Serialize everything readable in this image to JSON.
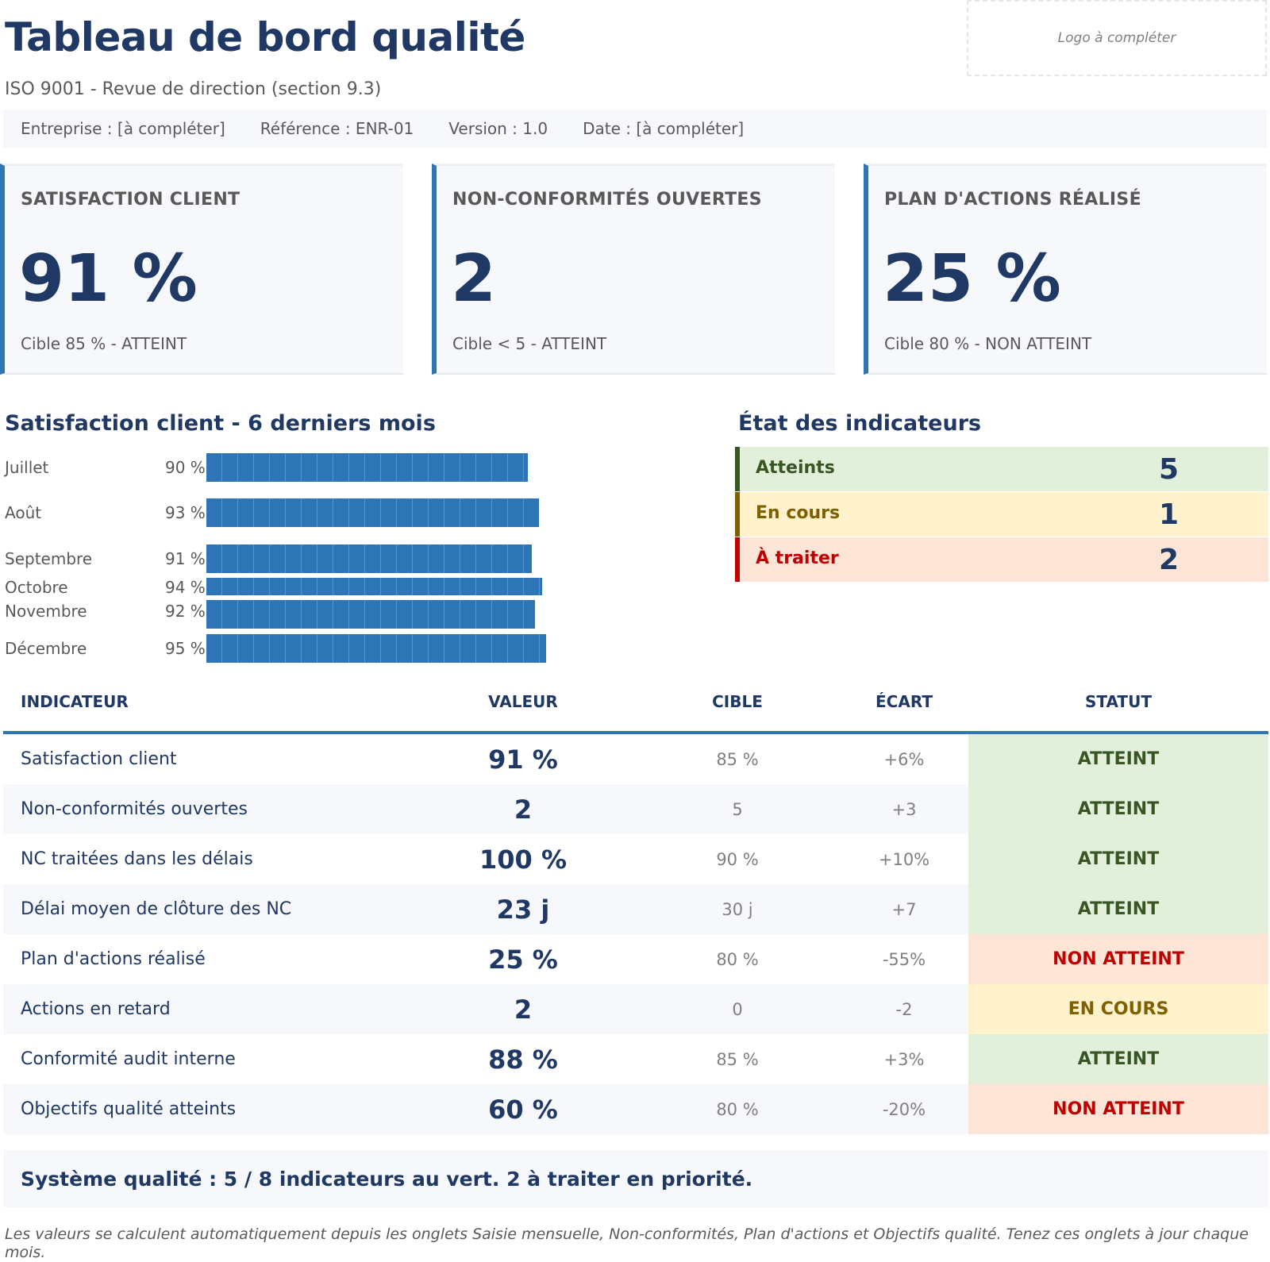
{
  "header": {
    "title": "Tableau de bord qualité",
    "subtitle": "ISO 9001 - Revue de direction (section 9.3)",
    "logo_placeholder": "Logo à compléter",
    "meta": {
      "company": "Entreprise : [à compléter]",
      "reference": "Référence : ENR-01",
      "version": "Version : 1.0",
      "date": "Date : [à compléter]"
    }
  },
  "kpis": [
    {
      "label": "SATISFACTION CLIENT",
      "value": "91 %",
      "target": "Cible 85 % - ATTEINT"
    },
    {
      "label": "NON-CONFORMITÉS OUVERTES",
      "value": "2",
      "target": "Cible < 5 - ATTEINT"
    },
    {
      "label": "PLAN D'ACTIONS RÉALISÉ",
      "value": "25 %",
      "target": "Cible 80 % - NON ATTEINT"
    }
  ],
  "satisfaction": {
    "title": "Satisfaction client - 6 derniers mois",
    "months": [
      {
        "month": "Juillet",
        "pct_label": "90 %",
        "value": 90
      },
      {
        "month": "Août",
        "pct_label": "93 %",
        "value": 93
      },
      {
        "month": "Septembre",
        "pct_label": "91 %",
        "value": 91
      },
      {
        "month": "Octobre",
        "pct_label": "94 %",
        "value": 94
      },
      {
        "month": "Novembre",
        "pct_label": "92 %",
        "value": 92
      },
      {
        "month": "Décembre",
        "pct_label": "95 %",
        "value": 95
      }
    ]
  },
  "status_summary": {
    "title": "État des indicateurs",
    "rows": [
      {
        "label": "Atteints",
        "count": "5",
        "bg": "#e2efda",
        "border": "#375623",
        "fg": "#375623"
      },
      {
        "label": "En cours",
        "count": "1",
        "bg": "#fff2cc",
        "border": "#7f6000",
        "fg": "#7f6000"
      },
      {
        "label": "À traiter",
        "count": "2",
        "bg": "#fce4d6",
        "border": "#c00000",
        "fg": "#c00000"
      }
    ]
  },
  "table": {
    "headers": {
      "indicator": "INDICATEUR",
      "value": "VALEUR",
      "target": "CIBLE",
      "gap": "ÉCART",
      "status": "STATUT"
    },
    "rows": [
      {
        "name": "Satisfaction client",
        "value": "91 %",
        "target": "85 %",
        "gap": "+6%",
        "status": "ATTEINT"
      },
      {
        "name": "Non-conformités ouvertes",
        "value": "2",
        "target": "5",
        "gap": "+3",
        "status": "ATTEINT"
      },
      {
        "name": "NC traitées dans les délais",
        "value": "100 %",
        "target": "90 %",
        "gap": "+10%",
        "status": "ATTEINT"
      },
      {
        "name": "Délai moyen de clôture des NC",
        "value": "23 j",
        "target": "30 j",
        "gap": "+7",
        "status": "ATTEINT"
      },
      {
        "name": "Plan d'actions réalisé",
        "value": "25 %",
        "target": "80 %",
        "gap": "-55%",
        "status": "NON ATTEINT"
      },
      {
        "name": "Actions en retard",
        "value": "2",
        "target": "0",
        "gap": "-2",
        "status": "EN COURS"
      },
      {
        "name": "Conformité audit interne",
        "value": "88 %",
        "target": "85 %",
        "gap": "+3%",
        "status": "ATTEINT"
      },
      {
        "name": "Objectifs qualité atteints",
        "value": "60 %",
        "target": "80 %",
        "gap": "-20%",
        "status": "NON ATTEINT"
      }
    ]
  },
  "colors": {
    "accent": "#2e75b6",
    "navy": "#1f3864",
    "ok_bg": "#e2efda",
    "ok_fg": "#375623",
    "warn_bg": "#fff2cc",
    "warn_fg": "#7f6000",
    "bad_bg": "#fce4d6",
    "bad_fg": "#c00000"
  },
  "summary": "Système qualité : 5 / 8 indicateurs au vert. 2 à traiter en priorité.",
  "footnote": "Les valeurs se calculent automatiquement depuis les onglets Saisie mensuelle, Non-conformités, Plan d'actions et Objectifs qualité. Tenez ces onglets à jour chaque mois."
}
